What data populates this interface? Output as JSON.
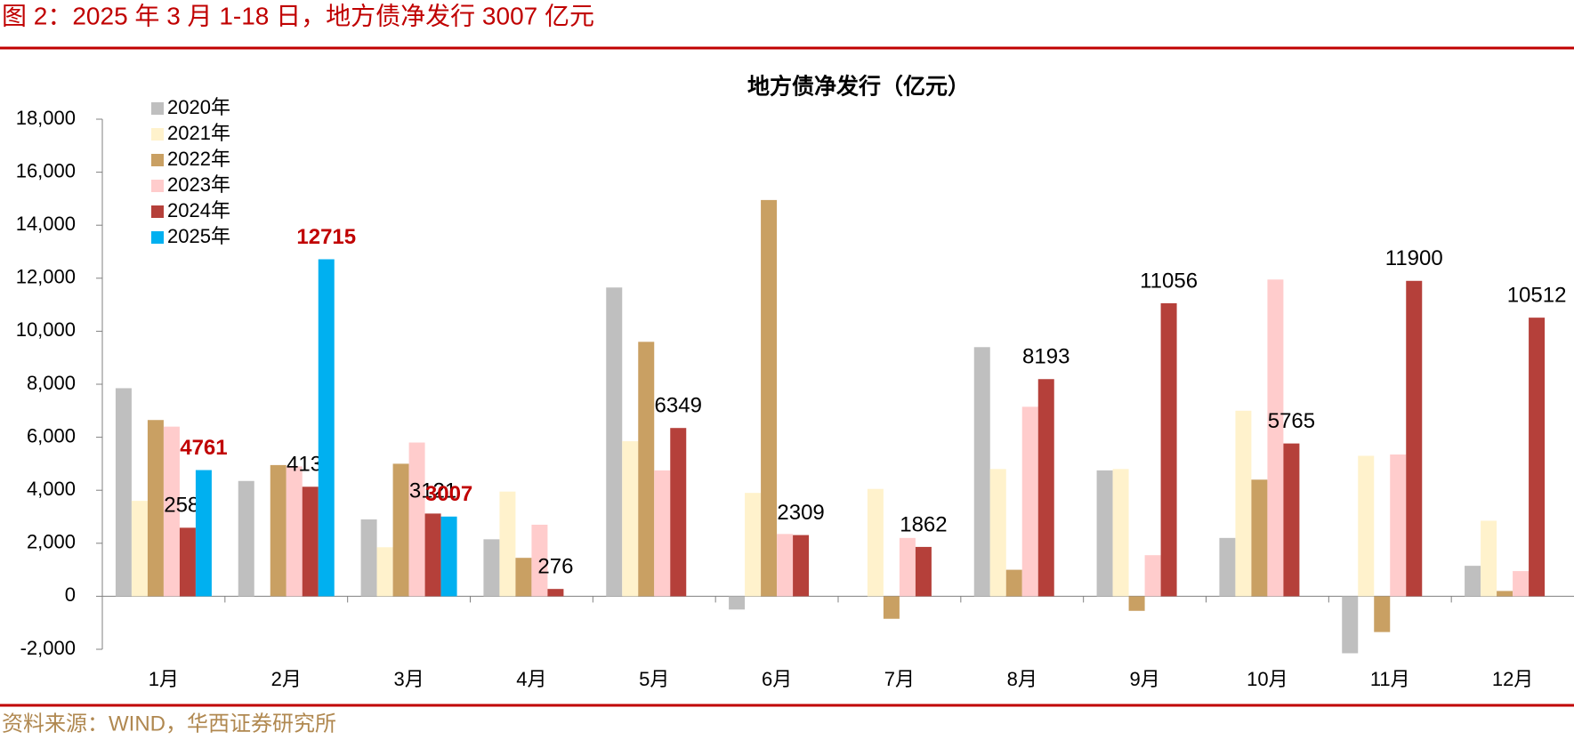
{
  "header": {
    "title": "图 2：2025 年 3 月 1-18 日，地方债净发行 3007 亿元"
  },
  "chart_data": {
    "type": "bar",
    "title": "地方债净发行（亿元）",
    "categories": [
      "1月",
      "2月",
      "3月",
      "4月",
      "5月",
      "6月",
      "7月",
      "8月",
      "9月",
      "10月",
      "11月",
      "12月"
    ],
    "series": [
      {
        "name": "2020年",
        "color": "#bfbfbf",
        "values": [
          7850,
          4350,
          2900,
          2150,
          11650,
          -500,
          null,
          9400,
          4750,
          2200,
          -2150,
          1150
        ]
      },
      {
        "name": "2021年",
        "color": "#fff2cc",
        "values": [
          3600,
          null,
          1850,
          3950,
          5850,
          3900,
          4050,
          4800,
          4800,
          7000,
          5300,
          2850
        ]
      },
      {
        "name": "2022年",
        "color": "#c9a063",
        "values": [
          6650,
          4950,
          5000,
          1450,
          9600,
          14950,
          -850,
          1000,
          -550,
          4400,
          -1350,
          200
        ]
      },
      {
        "name": "2023年",
        "color": "#ffcccc",
        "values": [
          6400,
          4900,
          5800,
          2700,
          4750,
          2350,
          2200,
          7150,
          1550,
          11950,
          5350,
          950
        ]
      },
      {
        "name": "2024年",
        "color": "#b5403a",
        "values": [
          2586,
          4132,
          3121,
          276,
          6349,
          2309,
          1862,
          8193,
          11056,
          5765,
          11900,
          10512
        ],
        "data_labels": true,
        "label_color": "#000000",
        "label_bold": false
      },
      {
        "name": "2025年",
        "color": "#00b0f0",
        "values": [
          4761,
          12715,
          3007,
          null,
          null,
          null,
          null,
          null,
          null,
          null,
          null,
          null
        ],
        "data_labels": true,
        "label_color": "#c00000",
        "label_bold": true
      }
    ],
    "ylim": [
      -2000,
      18000
    ],
    "yticks": [
      {
        "value": -2000,
        "label": "-2,000"
      },
      0,
      {
        "value": 2000,
        "label": "2,000"
      },
      {
        "value": 4000,
        "label": "4,000"
      },
      {
        "value": 6000,
        "label": "6,000"
      },
      {
        "value": 8000,
        "label": "8,000"
      },
      {
        "value": 10000,
        "label": "10,000"
      },
      {
        "value": 12000,
        "label": "12,000"
      },
      {
        "value": 14000,
        "label": "14,000"
      },
      {
        "value": 16000,
        "label": "16,000"
      },
      {
        "value": 18000,
        "label": "18,000"
      }
    ],
    "grid": false,
    "legend": "top-left"
  },
  "footer": {
    "source": "资料来源：WIND，华西证券研究所"
  }
}
